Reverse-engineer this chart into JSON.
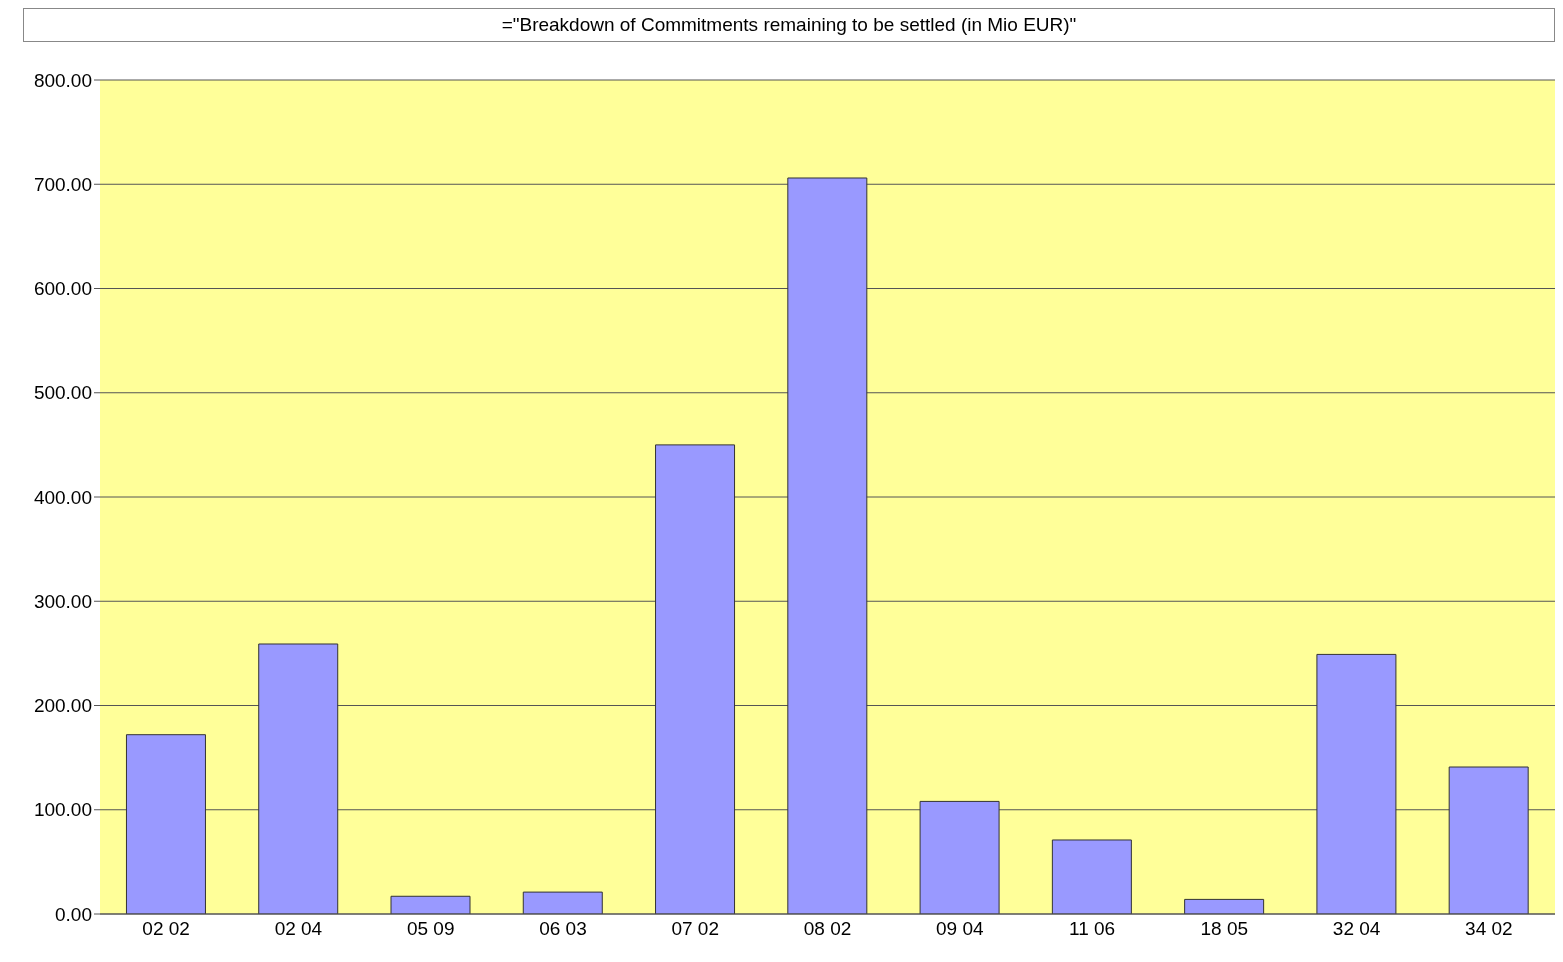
{
  "chart_data": {
    "type": "bar",
    "title": "=\"Breakdown of Commitments remaining to be settled (in Mio EUR)\"",
    "categories": [
      "02 02",
      "02 04",
      "05 09",
      "06 03",
      "07 02",
      "08 02",
      "09 04",
      "11 06",
      "18 05",
      "32 04",
      "34 02"
    ],
    "values": [
      172,
      259,
      17,
      21,
      450,
      706,
      108,
      71,
      14,
      249,
      141
    ],
    "color": "#9999ff",
    "ylim": [
      0,
      800
    ],
    "yticks": [
      {
        "value": 0,
        "label": "0.00"
      },
      {
        "value": 100,
        "label": "100.00"
      },
      {
        "value": 200,
        "label": "200.00"
      },
      {
        "value": 300,
        "label": "300.00"
      },
      {
        "value": 400,
        "label": "400.00"
      },
      {
        "value": 500,
        "label": "500.00"
      },
      {
        "value": 600,
        "label": "600.00"
      },
      {
        "value": 700,
        "label": "700.00"
      },
      {
        "value": 800,
        "label": "800.00"
      }
    ],
    "grid": "y",
    "legend": false
  }
}
